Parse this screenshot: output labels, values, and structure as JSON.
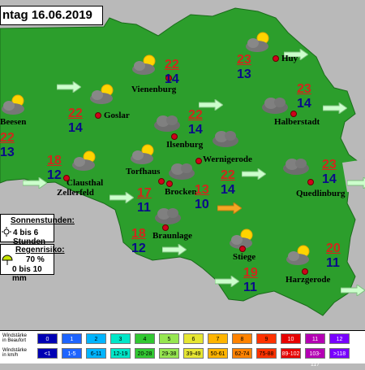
{
  "title": "ntag 16.06.2019",
  "colors": {
    "land": "#2c9e2c",
    "background": "#b9b9b9",
    "temp_max": "#d0281b",
    "temp_min": "#0a0a8a",
    "wind_arrow": "#ccffcc",
    "wind_arrow_strong": "#f5a623"
  },
  "stations": [
    {
      "name": "Beesen",
      "tmax": "22",
      "tmin": "13",
      "icon": "partly-cloudy-icon"
    },
    {
      "name": "Goslar",
      "tmax": "22",
      "tmin": "14",
      "icon": "partly-cloudy-icon"
    },
    {
      "name": "Vienenburg",
      "tmax": "22",
      "tmin": "14",
      "icon": "partly-cloudy-icon"
    },
    {
      "name": "Huy",
      "tmax": "23",
      "tmin": "13",
      "icon": "partly-cloudy-icon"
    },
    {
      "name": "Halberstadt",
      "tmax": "23",
      "tmin": "14",
      "icon": "cloudy-icon"
    },
    {
      "name": "Ilsenburg",
      "tmax": "22",
      "tmin": "14",
      "icon": "cloudy-icon"
    },
    {
      "name": "Wernigerode",
      "tmax": "22",
      "tmin": "14",
      "icon": "cloudy-icon"
    },
    {
      "name": "Clausthal Zellerfeld",
      "tmax": "18",
      "tmin": "12",
      "icon": "partly-cloudy-icon"
    },
    {
      "name": "Torfhaus",
      "tmax": "17",
      "tmin": "11",
      "icon": "partly-cloudy-icon"
    },
    {
      "name": "Brocken",
      "tmax": "13",
      "tmin": "10",
      "icon": "cloudy-icon"
    },
    {
      "name": "Quedlinburg",
      "tmax": "23",
      "tmin": "14",
      "icon": "cloudy-icon"
    },
    {
      "name": "Braunlage",
      "tmax": "18",
      "tmin": "12",
      "icon": "cloudy-icon"
    },
    {
      "name": "Stiege",
      "tmax": "19",
      "tmin": "11",
      "icon": "partly-cloudy-icon"
    },
    {
      "name": "Harzgerode",
      "tmax": "20",
      "tmin": "11",
      "icon": "partly-cloudy-icon"
    }
  ],
  "sunshine": {
    "heading": "Sonnenstunden:",
    "value": "4 bis 6 Stunden",
    "icon": "sun-icon"
  },
  "rain": {
    "heading": "Regenrisiko:",
    "probability": "70 %",
    "amount": "0 bis 10 mm",
    "icon": "umbrella-icon"
  },
  "legend": {
    "beaufort_label": "Windstärke in Beaufort",
    "kmh_label": "Windstärke in km/h",
    "beaufort": [
      "0",
      "1",
      "2",
      "3",
      "4",
      "5",
      "6",
      "7",
      "8",
      "9",
      "10",
      "11",
      "12"
    ],
    "kmh": [
      "<1",
      "1-5",
      "6-11",
      "12-19",
      "20-28",
      "29-38",
      "39-49",
      "50-61",
      "62-74",
      "75-88",
      "89-102",
      "103-117",
      ">118"
    ],
    "colors": [
      "#0000b4",
      "#1e64ff",
      "#00b4ff",
      "#00e6c8",
      "#32c832",
      "#96e650",
      "#e6e632",
      "#ffb400",
      "#ff8200",
      "#ff3200",
      "#e60000",
      "#b400b4",
      "#7800ff"
    ]
  }
}
